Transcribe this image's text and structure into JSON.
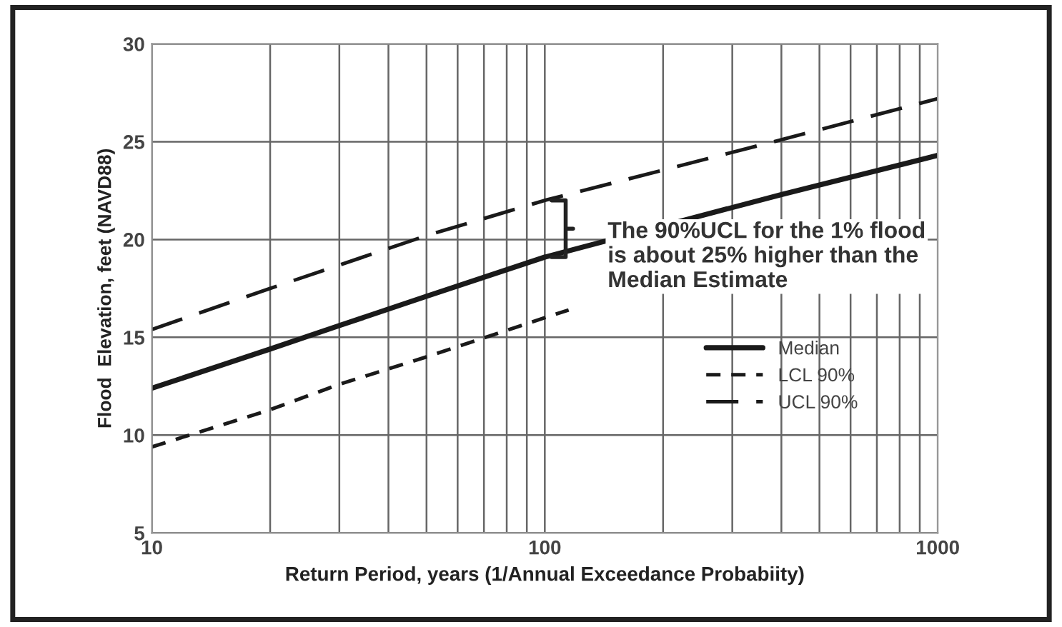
{
  "chart_data": {
    "type": "line",
    "xlabel": "Return Period, years (1/Annual Exceedance Probabiity)",
    "ylabel": "Flood  Elevation, feet (NAVD88)",
    "log": "x",
    "xlim": [
      10,
      1000
    ],
    "xticks": [
      10,
      100,
      1000
    ],
    "ylim": [
      5,
      30
    ],
    "yticks": [
      5,
      10,
      15,
      20,
      25,
      30
    ],
    "grid": true,
    "legend": "right",
    "series": [
      {
        "name": "Median",
        "color": "#1a1a1a",
        "line_style": "solid",
        "x": [
          10,
          20,
          30,
          50,
          100,
          400,
          1000
        ],
        "values": [
          12.4,
          14.4,
          15.6,
          17.1,
          19.1,
          22.3,
          24.3
        ]
      },
      {
        "name": "LCL 90%",
        "color": "#1a1a1a",
        "line_style": "dashed",
        "x": [
          10,
          20,
          30,
          50,
          100,
          115
        ],
        "values": [
          9.4,
          11.3,
          12.6,
          14.0,
          16.0,
          16.4
        ]
      },
      {
        "name": "UCL 90%",
        "color": "#1a1a1a",
        "line_style": "longdash",
        "x": [
          10,
          20,
          50,
          100,
          400,
          1000
        ],
        "values": [
          15.4,
          17.5,
          20.2,
          22.0,
          25.1,
          27.2
        ]
      }
    ],
    "annotations": [
      "The 90%UCL for the 1% flood\nis about 25% higher than the\nMedian Estimate"
    ]
  }
}
